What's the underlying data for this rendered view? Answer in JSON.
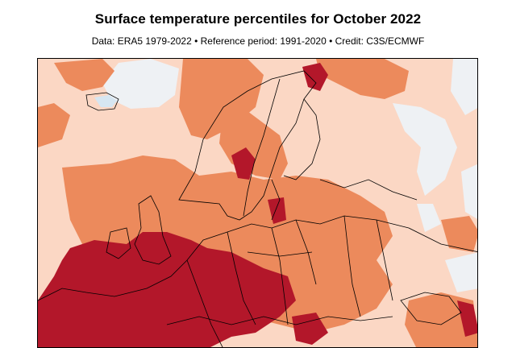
{
  "header": {
    "title": "Surface temperature percentiles for October 2022",
    "subtitle": "Data: ERA5 1979-2022 • Reference period: 1991-2020 • Credit: C3S/ECMWF"
  },
  "map": {
    "region": "Europe",
    "colors": {
      "near_average": "#eef1f4",
      "above_average": "#fbd7c4",
      "much_above_average": "#ec8a5c",
      "warmest_10_percent": "#b3172a",
      "record_warm": "#cf1b2a",
      "below_average": "#d6e6f1",
      "boundaries": "#000000"
    }
  }
}
